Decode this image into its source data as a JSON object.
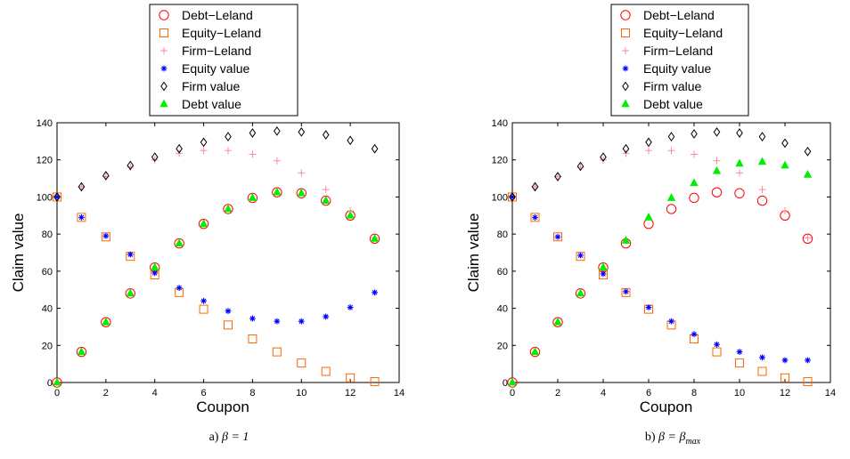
{
  "figure": {
    "caption_a_prefix": "a)",
    "caption_a_math": "β = 1",
    "caption_b_prefix": "b)",
    "caption_b_math_lhs": "β = β",
    "caption_b_math_sub": "max"
  },
  "style": {
    "debt_leland_color": "#ff0000",
    "equity_leland_color": "#ff6600",
    "firm_leland_color": "#ff8899",
    "equity_value_color": "#0000ff",
    "firm_value_color": "#000000",
    "debt_value_color": "#00ee00",
    "marker_names": {
      "Debt-Leland": "circle",
      "Equity-Leland": "square",
      "Firm-Leland": "plus",
      "Equity value": "asterisk",
      "Firm value": "diamond",
      "Debt value": "triangle"
    }
  },
  "chart_data": [
    {
      "type": "scatter",
      "panel": "a",
      "xlabel": "Coupon",
      "ylabel": "Claim value",
      "xlim": [
        0,
        14
      ],
      "ylim": [
        0,
        140
      ],
      "xticks": [
        0,
        2,
        4,
        6,
        8,
        10,
        12,
        14
      ],
      "yticks": [
        0,
        20,
        40,
        60,
        80,
        100,
        120,
        140
      ],
      "legend_position": "top",
      "grid": false,
      "x": [
        0,
        1,
        2,
        3,
        4,
        5,
        6,
        7,
        8,
        9,
        10,
        11,
        12,
        13
      ],
      "series": [
        {
          "name": "Debt−Leland",
          "marker": "circle",
          "values": [
            0,
            16.5,
            32.5,
            48,
            62,
            75,
            85.5,
            93.5,
            99.5,
            102.5,
            102,
            98,
            90,
            77.5
          ]
        },
        {
          "name": "Equity−Leland",
          "marker": "square",
          "values": [
            100,
            89,
            78.5,
            68,
            58,
            48.5,
            39.5,
            31,
            23.5,
            16.5,
            10.5,
            6,
            2.5,
            0.5
          ]
        },
        {
          "name": "Firm−Leland",
          "marker": "plus",
          "values": [
            100,
            105.5,
            111,
            116,
            120,
            123.5,
            125,
            125,
            123,
            119.5,
            113,
            104,
            92.5,
            78
          ]
        },
        {
          "name": "Equity value",
          "marker": "asterisk",
          "values": [
            100,
            89,
            79,
            69,
            59,
            51,
            44,
            38.5,
            34.5,
            33,
            33,
            35.5,
            40.5,
            48.5
          ]
        },
        {
          "name": "Firm value",
          "marker": "diamond",
          "values": [
            100,
            105.5,
            111.5,
            117,
            121.5,
            126,
            129.5,
            132.5,
            134.5,
            135.5,
            135,
            133.5,
            130.5,
            126
          ]
        },
        {
          "name": "Debt value",
          "marker": "triangle",
          "values": [
            0,
            16.5,
            32.5,
            48,
            62,
            75,
            85.5,
            93.5,
            99.5,
            102.5,
            102,
            98,
            90,
            77.5
          ]
        }
      ]
    },
    {
      "type": "scatter",
      "panel": "b",
      "xlabel": "Coupon",
      "ylabel": "Claim value",
      "xlim": [
        0,
        14
      ],
      "ylim": [
        0,
        140
      ],
      "xticks": [
        0,
        2,
        4,
        6,
        8,
        10,
        12,
        14
      ],
      "yticks": [
        0,
        20,
        40,
        60,
        80,
        100,
        120,
        140
      ],
      "legend_position": "top",
      "grid": false,
      "x": [
        0,
        1,
        2,
        3,
        4,
        5,
        6,
        7,
        8,
        9,
        10,
        11,
        12,
        13
      ],
      "series": [
        {
          "name": "Debt−Leland",
          "marker": "circle",
          "values": [
            0,
            16.5,
            32.5,
            48,
            62,
            75,
            85.5,
            93.5,
            99.5,
            102.5,
            102,
            98,
            90,
            77.5
          ]
        },
        {
          "name": "Equity−Leland",
          "marker": "square",
          "values": [
            100,
            89,
            78.5,
            68,
            58,
            48.5,
            39.5,
            31,
            23.5,
            16.5,
            10.5,
            6,
            2.5,
            0.5
          ]
        },
        {
          "name": "Firm−Leland",
          "marker": "plus",
          "values": [
            100,
            105.5,
            111,
            116,
            120,
            123.5,
            125,
            125,
            123,
            119.5,
            113,
            104,
            92.5,
            78
          ]
        },
        {
          "name": "Equity value",
          "marker": "asterisk",
          "values": [
            100,
            89,
            78.5,
            68.5,
            58.5,
            49,
            40.5,
            33,
            26,
            20.5,
            16.5,
            13.5,
            12,
            12
          ]
        },
        {
          "name": "Firm value",
          "marker": "diamond",
          "values": [
            100,
            105.5,
            111,
            116.5,
            121.5,
            126,
            129.5,
            132.5,
            134,
            135,
            134.5,
            132.5,
            129,
            124.5
          ]
        },
        {
          "name": "Debt value",
          "marker": "triangle",
          "values": [
            0,
            16.5,
            32.5,
            48,
            62,
            76.5,
            89,
            99.5,
            107.5,
            114,
            118,
            119,
            117,
            112
          ]
        }
      ]
    }
  ]
}
